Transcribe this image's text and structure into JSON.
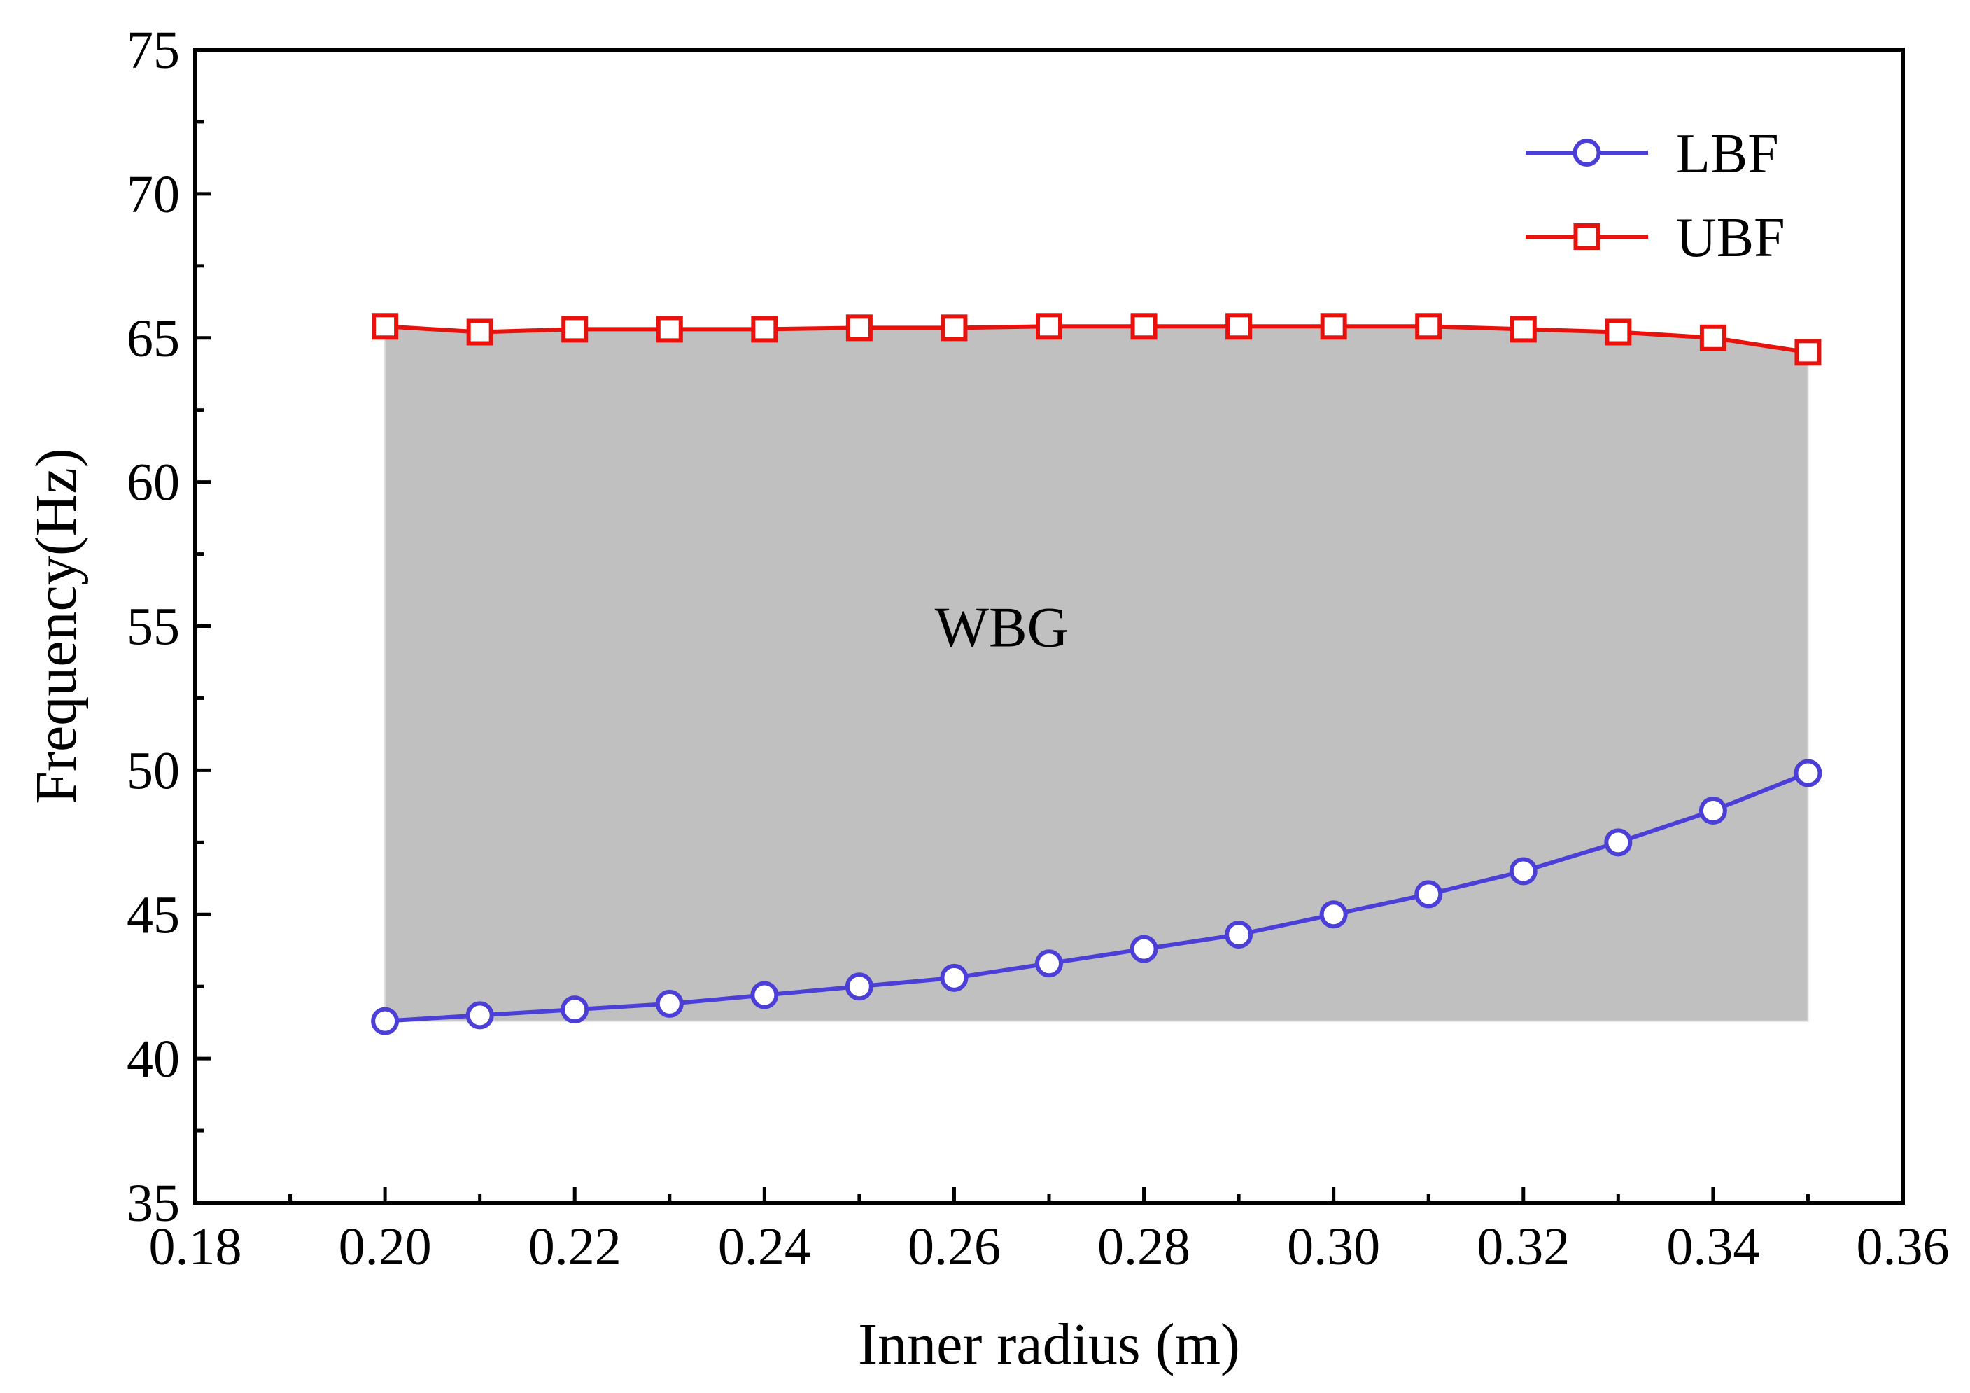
{
  "chart_data": {
    "type": "line",
    "title": "",
    "xlabel": "Inner radius (m)",
    "ylabel": "Frequency(Hz)",
    "xlim": [
      0.18,
      0.36
    ],
    "ylim": [
      35,
      75
    ],
    "xticks": [
      0.18,
      0.2,
      0.22,
      0.24,
      0.26,
      0.28,
      0.3,
      0.32,
      0.34,
      0.36
    ],
    "xtick_labels": [
      "0.18",
      "0.20",
      "0.22",
      "0.24",
      "0.26",
      "0.28",
      "0.30",
      "0.32",
      "0.34",
      "0.36"
    ],
    "yticks": [
      35,
      40,
      45,
      50,
      55,
      60,
      65,
      70,
      75
    ],
    "ytick_labels": [
      "35",
      "40",
      "45",
      "50",
      "55",
      "60",
      "65",
      "70",
      "75"
    ],
    "x": [
      0.2,
      0.21,
      0.22,
      0.23,
      0.24,
      0.25,
      0.26,
      0.27,
      0.28,
      0.29,
      0.3,
      0.31,
      0.32,
      0.33,
      0.34,
      0.35
    ],
    "series": [
      {
        "name": "LBF",
        "color": "#4b3fd8",
        "marker": "circle",
        "values": [
          41.3,
          41.5,
          41.7,
          41.9,
          42.2,
          42.5,
          42.8,
          43.3,
          43.8,
          44.3,
          45.0,
          45.7,
          46.5,
          47.5,
          48.6,
          49.9
        ]
      },
      {
        "name": "UBF",
        "color": "#e8120c",
        "marker": "square",
        "values": [
          65.4,
          65.2,
          65.3,
          65.3,
          65.3,
          65.35,
          65.35,
          65.4,
          65.4,
          65.4,
          65.4,
          65.4,
          65.3,
          65.2,
          65.0,
          64.5
        ]
      }
    ],
    "band": {
      "label": "WBG",
      "color": "#c0c0c0",
      "between": [
        "LBF",
        "UBF"
      ]
    },
    "annotations": [
      {
        "text": "WBG",
        "x": 0.265,
        "y": 54.3
      }
    ],
    "legend": {
      "position": "top-right",
      "entries": [
        "LBF",
        "UBF"
      ]
    },
    "grid": false
  }
}
